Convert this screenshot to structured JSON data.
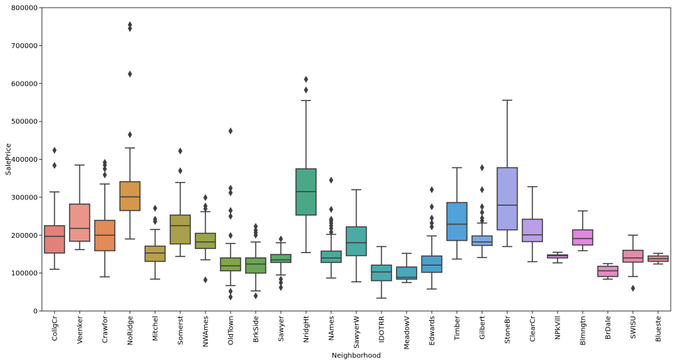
{
  "chart_data": {
    "type": "box",
    "xlabel": "Neighborhood",
    "ylabel": "SalePrice",
    "ylim": [
      0,
      800000
    ],
    "yticks": [
      0,
      100000,
      200000,
      300000,
      400000,
      500000,
      600000,
      700000,
      800000
    ],
    "ytick_labels": [
      "0",
      "100000",
      "200000",
      "300000",
      "400000",
      "500000",
      "600000",
      "700000",
      "800000"
    ],
    "grid": false,
    "legend": "none",
    "categories": [
      "CollgCr",
      "Veenker",
      "Crawfor",
      "NoRidge",
      "Mitchel",
      "Somerst",
      "NWAmes",
      "OldTown",
      "BrkSide",
      "Sawyer",
      "NridgHt",
      "NAmes",
      "SawyerW",
      "IDOTRR",
      "MeadowV",
      "Edwards",
      "Timber",
      "Gilbert",
      "StoneBr",
      "ClearCr",
      "NPkVill",
      "Blmngtn",
      "BrDale",
      "SWISU",
      "Blueste"
    ],
    "colors": [
      "#e1817a",
      "#e8968b",
      "#e28b56",
      "#d5974a",
      "#b9a04a",
      "#a8a04a",
      "#99a34a",
      "#82a64a",
      "#6aa653",
      "#59a870",
      "#4aa887",
      "#4aa99b",
      "#4aaba5",
      "#4aaab0",
      "#4aa7be",
      "#4aa2cb",
      "#52a1d8",
      "#7ca9e0",
      "#a2a6e6",
      "#bb9ee6",
      "#cf93e3",
      "#e386e0",
      "#e48cc4",
      "#e48bab",
      "#e28a93"
    ],
    "boxes": [
      {
        "whislo": 110000,
        "q1": 153000,
        "med": 197000,
        "q3": 225000,
        "whishi": 314000,
        "fliers": [
          384000,
          424000
        ]
      },
      {
        "whislo": 162000,
        "q1": 184000,
        "med": 218000,
        "q3": 282000,
        "whishi": 385000,
        "fliers": []
      },
      {
        "whislo": 90000,
        "q1": 159000,
        "med": 200000,
        "q3": 239000,
        "whishi": 335000,
        "fliers": [
          359000,
          375000,
          385000,
          392000
        ]
      },
      {
        "whislo": 190000,
        "q1": 265000,
        "med": 301000,
        "q3": 341000,
        "whishi": 430000,
        "fliers": [
          465000,
          625000,
          745000,
          755000
        ]
      },
      {
        "whislo": 84000,
        "q1": 131000,
        "med": 153000,
        "q3": 171000,
        "whishi": 215000,
        "fliers": [
          236000,
          242000,
          271000
        ]
      },
      {
        "whislo": 144000,
        "q1": 177000,
        "med": 225000,
        "q3": 253000,
        "whishi": 339000,
        "fliers": [
          370000,
          422000
        ]
      },
      {
        "whislo": 135000,
        "q1": 165000,
        "med": 182000,
        "q3": 205000,
        "whishi": 262000,
        "fliers": [
          82000,
          270000,
          277000,
          299000
        ]
      },
      {
        "whislo": 67000,
        "q1": 106000,
        "med": 119000,
        "q3": 140000,
        "whishi": 178000,
        "fliers": [
          37000,
          52000,
          199000,
          250000,
          265000,
          312000,
          324000,
          475000
        ]
      },
      {
        "whislo": 53000,
        "q1": 100000,
        "med": 124000,
        "q3": 140000,
        "whishi": 182000,
        "fliers": [
          40000,
          200000,
          207000,
          213000,
          223000
        ]
      },
      {
        "whislo": 95000,
        "q1": 128000,
        "med": 135000,
        "q3": 149000,
        "whishi": 180000,
        "fliers": [
          62000,
          75000,
          84000,
          190000
        ]
      },
      {
        "whislo": 154000,
        "q1": 253000,
        "med": 315000,
        "q3": 375000,
        "whishi": 555000,
        "fliers": [
          583000,
          611000
        ]
      },
      {
        "whislo": 87000,
        "q1": 128000,
        "med": 140000,
        "q3": 158000,
        "whishi": 202000,
        "fliers": [
          208000,
          218000,
          225000,
          232000,
          238000,
          242000,
          268000,
          345000
        ]
      },
      {
        "whislo": 77000,
        "q1": 146000,
        "med": 180000,
        "q3": 222000,
        "whishi": 320000,
        "fliers": []
      },
      {
        "whislo": 34000,
        "q1": 80000,
        "med": 103000,
        "q3": 121000,
        "whishi": 170000,
        "fliers": []
      },
      {
        "whislo": 75000,
        "q1": 84000,
        "med": 89000,
        "q3": 116000,
        "whishi": 152000,
        "fliers": []
      },
      {
        "whislo": 58000,
        "q1": 102000,
        "med": 121000,
        "q3": 145000,
        "whishi": 198000,
        "fliers": [
          222000,
          232000,
          245000,
          275000,
          320000
        ]
      },
      {
        "whislo": 137000,
        "q1": 186000,
        "med": 229000,
        "q3": 286000,
        "whishi": 378000,
        "fliers": []
      },
      {
        "whislo": 141000,
        "q1": 173000,
        "med": 182000,
        "q3": 198000,
        "whishi": 232000,
        "fliers": [
          238000,
          245000,
          260000,
          275000,
          320000,
          378000
        ]
      },
      {
        "whislo": 170000,
        "q1": 214000,
        "med": 279000,
        "q3": 378000,
        "whishi": 556000,
        "fliers": []
      },
      {
        "whislo": 130000,
        "q1": 183000,
        "med": 201000,
        "q3": 242000,
        "whishi": 328000,
        "fliers": []
      },
      {
        "whislo": 127000,
        "q1": 140000,
        "med": 146000,
        "q3": 148000,
        "whishi": 155000,
        "fliers": []
      },
      {
        "whislo": 159000,
        "q1": 174000,
        "med": 191000,
        "q3": 214000,
        "whishi": 264000,
        "fliers": []
      },
      {
        "whislo": 84000,
        "q1": 91000,
        "med": 106000,
        "q3": 118000,
        "whishi": 125000,
        "fliers": []
      },
      {
        "whislo": 91000,
        "q1": 129000,
        "med": 140000,
        "q3": 160000,
        "whishi": 200000,
        "fliers": [
          60000
        ]
      },
      {
        "whislo": 124000,
        "q1": 131000,
        "med": 138000,
        "q3": 145000,
        "whishi": 152000,
        "fliers": []
      }
    ]
  }
}
